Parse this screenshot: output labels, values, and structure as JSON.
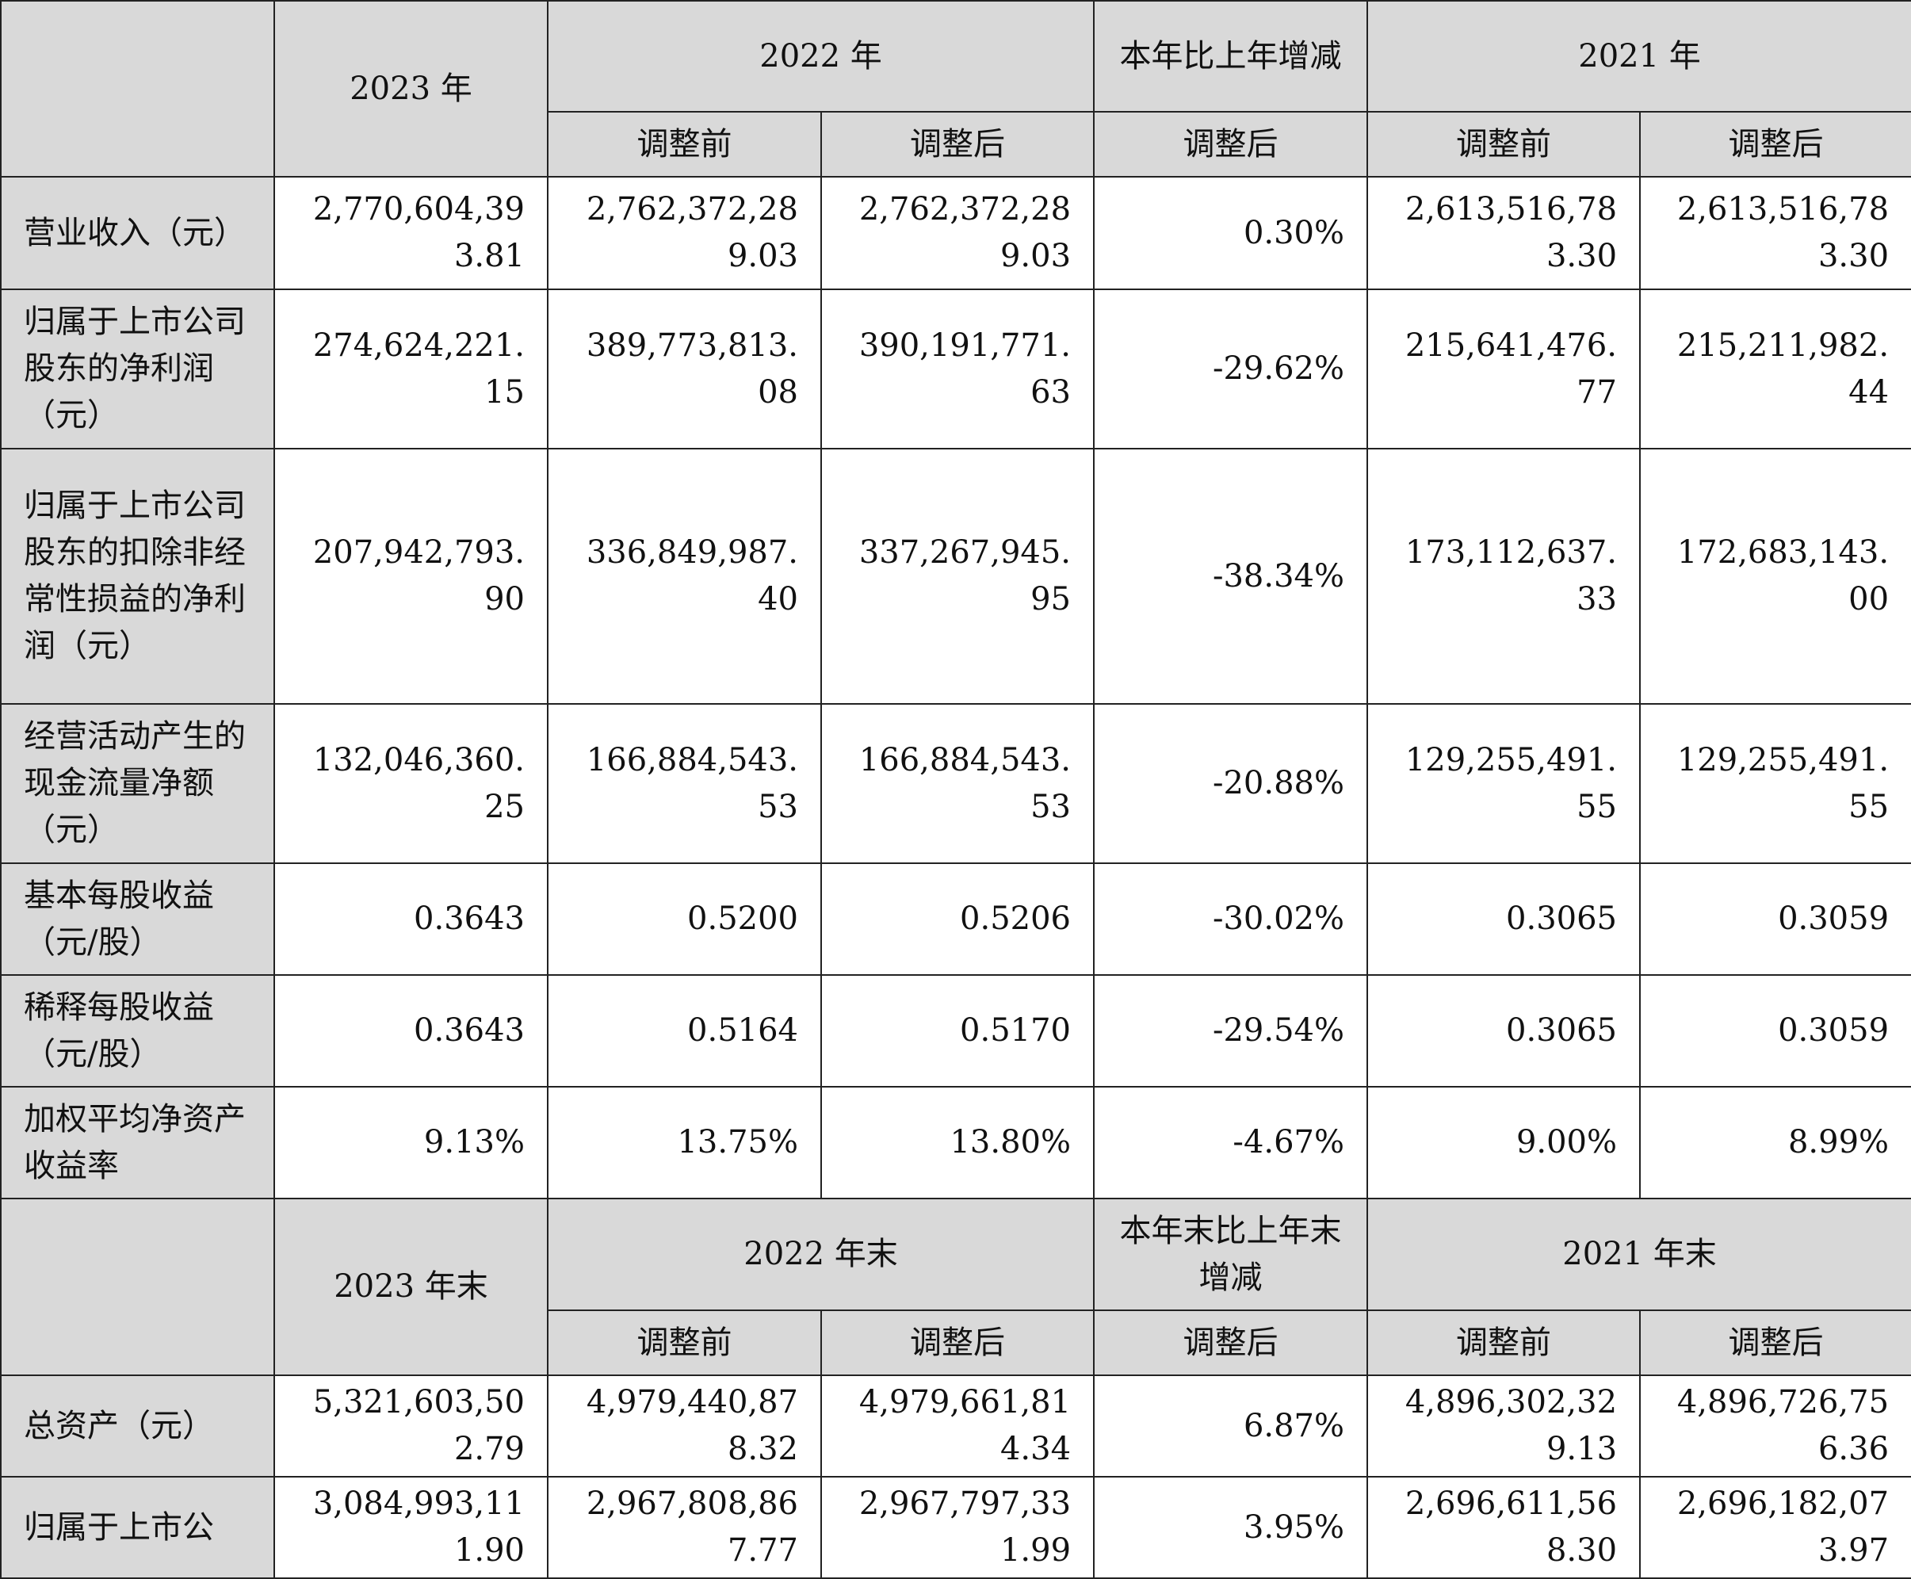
{
  "header1": {
    "col_2023": "2023 年",
    "col_2022": "2022 年",
    "col_change": "本年比上年增减",
    "col_2021": "2021 年",
    "before": "调整前",
    "after": "调整后"
  },
  "rows1": [
    {
      "label": "营业收入（元）",
      "v2023": "2,770,604,393.81",
      "v2022b": "2,762,372,289.03",
      "v2022a": "2,762,372,289.03",
      "chg": "0.30%",
      "v2021b": "2,613,516,783.30",
      "v2021a": "2,613,516,783.30"
    },
    {
      "label": "归属于上市公司股东的净利润（元）",
      "v2023": "274,624,221.15",
      "v2022b": "389,773,813.08",
      "v2022a": "390,191,771.63",
      "chg": "-29.62%",
      "v2021b": "215,641,476.77",
      "v2021a": "215,211,982.44"
    },
    {
      "label": "归属于上市公司股东的扣除非经常性损益的净利润（元）",
      "v2023": "207,942,793.90",
      "v2022b": "336,849,987.40",
      "v2022a": "337,267,945.95",
      "chg": "-38.34%",
      "v2021b": "173,112,637.33",
      "v2021a": "172,683,143.00"
    },
    {
      "label": "经营活动产生的现金流量净额（元）",
      "v2023": "132,046,360.25",
      "v2022b": "166,884,543.53",
      "v2022a": "166,884,543.53",
      "chg": "-20.88%",
      "v2021b": "129,255,491.55",
      "v2021a": "129,255,491.55"
    },
    {
      "label": "基本每股收益（元/股）",
      "v2023": "0.3643",
      "v2022b": "0.5200",
      "v2022a": "0.5206",
      "chg": "-30.02%",
      "v2021b": "0.3065",
      "v2021a": "0.3059"
    },
    {
      "label": "稀释每股收益（元/股）",
      "v2023": "0.3643",
      "v2022b": "0.5164",
      "v2022a": "0.5170",
      "chg": "-29.54%",
      "v2021b": "0.3065",
      "v2021a": "0.3059"
    },
    {
      "label": "加权平均净资产收益率",
      "v2023": "9.13%",
      "v2022b": "13.75%",
      "v2022a": "13.80%",
      "chg": "-4.67%",
      "v2021b": "9.00%",
      "v2021a": "8.99%"
    }
  ],
  "header2": {
    "col_2023": "2023 年末",
    "col_2022": "2022 年末",
    "col_change": "本年末比上年末增减",
    "col_2021": "2021 年末",
    "before": "调整前",
    "after": "调整后"
  },
  "rows2": [
    {
      "label": "总资产（元）",
      "v2023": "5,321,603,502.79",
      "v2022b": "4,979,440,878.32",
      "v2022a": "4,979,661,814.34",
      "chg": "6.87%",
      "v2021b": "4,896,302,329.13",
      "v2021a": "4,896,726,756.36"
    },
    {
      "label": "归属于上市公",
      "v2023": "3,084,993,111.90",
      "v2022b": "2,967,808,867.77",
      "v2022a": "2,967,797,331.99",
      "chg": "3.95%",
      "v2021b": "2,696,611,568.30",
      "v2021a": "2,696,182,073.97"
    }
  ]
}
